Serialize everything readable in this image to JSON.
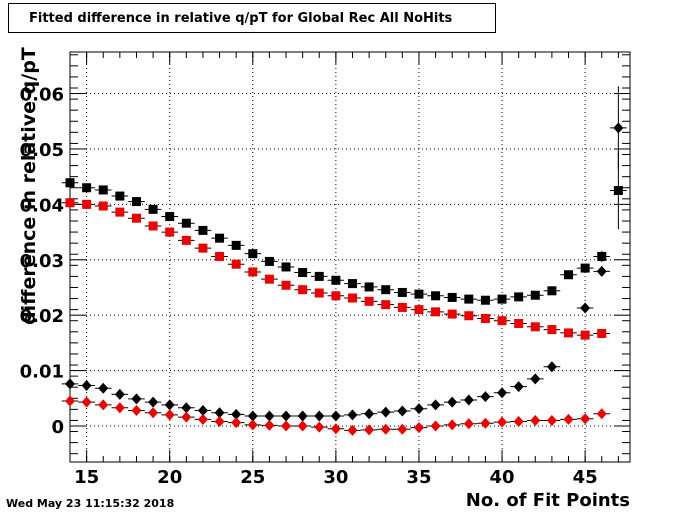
{
  "chart_data": {
    "type": "scatter",
    "title": "Fitted difference in relative q/pT  for Global Rec All NoHits",
    "xlabel": "No. of Fit Points",
    "ylabel": "difference in relative q/pT",
    "xlim": [
      14,
      47.7
    ],
    "ylim": [
      -0.0065,
      0.0675
    ],
    "xticks": [
      15,
      20,
      25,
      30,
      35,
      40,
      45
    ],
    "yticks": [
      0,
      0.01,
      0.02,
      0.03,
      0.04,
      0.05,
      0.06
    ],
    "ytick_labels": [
      "0",
      "0.01",
      "0.02",
      "0.03",
      "0.04",
      "0.05",
      "0.06"
    ],
    "grid": true,
    "series": [
      {
        "marker": "square",
        "color": "#000000",
        "x": [
          14,
          15,
          16,
          17,
          18,
          19,
          20,
          21,
          22,
          23,
          24,
          25,
          26,
          27,
          28,
          29,
          30,
          31,
          32,
          33,
          34,
          35,
          36,
          37,
          38,
          39,
          40,
          41,
          42,
          43,
          44,
          45,
          46,
          47
        ],
        "y": [
          0.0439,
          0.043,
          0.0426,
          0.0415,
          0.0405,
          0.0391,
          0.0378,
          0.0366,
          0.0353,
          0.0339,
          0.0326,
          0.0311,
          0.0297,
          0.0287,
          0.0277,
          0.027,
          0.0263,
          0.0257,
          0.0251,
          0.0246,
          0.0241,
          0.0238,
          0.0235,
          0.0232,
          0.0229,
          0.0227,
          0.0229,
          0.0233,
          0.0236,
          0.0244,
          0.0273,
          0.0285,
          0.0306,
          0.0425
        ],
        "err": [
          0,
          0,
          0,
          0,
          0,
          0,
          0,
          0,
          0,
          0,
          0,
          0,
          0,
          0,
          0,
          0,
          0,
          0,
          0,
          0,
          0,
          0,
          0,
          0,
          0,
          0,
          0,
          0,
          0,
          0,
          0.0005,
          0.0007,
          0.001,
          0.007
        ]
      },
      {
        "marker": "square",
        "color": "#ee0000",
        "x": [
          14,
          15,
          16,
          17,
          18,
          19,
          20,
          21,
          22,
          23,
          24,
          25,
          26,
          27,
          28,
          29,
          30,
          31,
          32,
          33,
          34,
          35,
          36,
          37,
          38,
          39,
          40,
          41,
          42,
          43,
          44,
          45,
          46
        ],
        "y": [
          0.0403,
          0.04,
          0.0397,
          0.0386,
          0.0375,
          0.0361,
          0.035,
          0.0335,
          0.0321,
          0.0306,
          0.0292,
          0.0278,
          0.0265,
          0.0254,
          0.0246,
          0.024,
          0.0235,
          0.0231,
          0.0225,
          0.0219,
          0.0214,
          0.021,
          0.0206,
          0.0202,
          0.0199,
          0.0194,
          0.019,
          0.0185,
          0.0179,
          0.0174,
          0.0168,
          0.0164,
          0.0167
        ],
        "err": [
          0,
          0,
          0,
          0,
          0,
          0,
          0,
          0,
          0,
          0,
          0,
          0,
          0,
          0,
          0,
          0,
          0,
          0,
          0,
          0,
          0,
          0,
          0,
          0,
          0,
          0,
          0,
          0,
          0,
          0,
          0,
          0,
          0
        ]
      },
      {
        "marker": "diamond",
        "color": "#000000",
        "x": [
          14,
          15,
          16,
          17,
          18,
          19,
          20,
          21,
          22,
          23,
          24,
          25,
          26,
          27,
          28,
          29,
          30,
          31,
          32,
          33,
          34,
          35,
          36,
          37,
          38,
          39,
          40,
          41,
          42,
          43,
          45,
          46,
          47
        ],
        "y": [
          0.0076,
          0.0073,
          0.0068,
          0.0057,
          0.0049,
          0.0043,
          0.0038,
          0.0033,
          0.0028,
          0.0024,
          0.0021,
          0.0018,
          0.0018,
          0.0018,
          0.0018,
          0.0018,
          0.0018,
          0.002,
          0.0022,
          0.0025,
          0.0027,
          0.0031,
          0.0038,
          0.0043,
          0.0047,
          0.0053,
          0.006,
          0.0071,
          0.0085,
          0.0107,
          0.0213,
          0.0279,
          0.0538
        ],
        "err": [
          0,
          0,
          0,
          0,
          0,
          0,
          0,
          0,
          0,
          0,
          0,
          0,
          0,
          0,
          0,
          0,
          0,
          0,
          0,
          0,
          0,
          0,
          0,
          0,
          0,
          0,
          0,
          0,
          0,
          0,
          0.0006,
          0.0008,
          0.0075
        ]
      },
      {
        "marker": "diamond",
        "color": "#ee0000",
        "x": [
          14,
          15,
          16,
          17,
          18,
          19,
          20,
          21,
          22,
          23,
          24,
          25,
          26,
          27,
          28,
          29,
          30,
          31,
          32,
          33,
          34,
          35,
          36,
          37,
          38,
          39,
          40,
          41,
          42,
          43,
          44,
          45,
          46
        ],
        "y": [
          0.0045,
          0.0043,
          0.0038,
          0.0033,
          0.0028,
          0.0024,
          0.002,
          0.0016,
          0.0012,
          0.0008,
          0.0006,
          0.0002,
          0.0001,
          0.0,
          0.0,
          -0.0002,
          -0.0005,
          -0.0008,
          -0.0007,
          -0.0006,
          -0.0006,
          -0.0003,
          0.0,
          0.0002,
          0.0004,
          0.0005,
          0.0007,
          0.0008,
          0.001,
          0.001,
          0.0012,
          0.0013,
          0.0022
        ],
        "err": [
          0,
          0,
          0,
          0,
          0,
          0,
          0,
          0,
          0,
          0,
          0,
          0,
          0,
          0,
          0,
          0,
          0,
          0,
          0,
          0,
          0,
          0,
          0,
          0,
          0,
          0,
          0,
          0,
          0,
          0,
          0,
          0,
          0
        ]
      }
    ]
  },
  "footer": {
    "timestamp": "Wed May 23 11:15:32 2018"
  }
}
